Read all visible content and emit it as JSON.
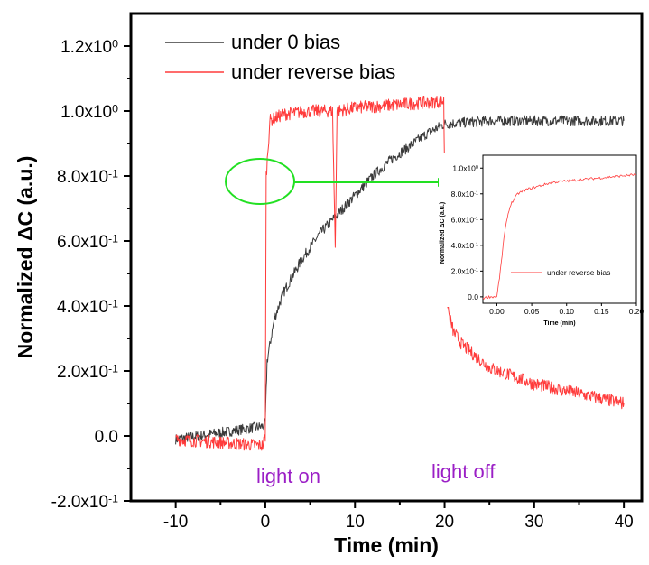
{
  "chart_data": {
    "main": {
      "type": "line",
      "xlabel": "Time (min)",
      "ylabel": "Normalized ΔC (a.u.)",
      "xlim": [
        -15,
        42
      ],
      "ylim": [
        -0.2,
        1.3
      ],
      "x_ticks": [
        -10,
        0,
        10,
        20,
        30,
        40
      ],
      "x_tick_labels": [
        "-10",
        "0",
        "10",
        "20",
        "30",
        "40"
      ],
      "y_ticks": [
        -0.2,
        0.0,
        0.2,
        0.4,
        0.6,
        0.8,
        1.0,
        1.2
      ],
      "y_tick_labels": [
        {
          "mantissa": "-2.0x10",
          "exp": "-1"
        },
        {
          "mantissa": "0.0",
          "exp": ""
        },
        {
          "mantissa": "2.0x10",
          "exp": "-1"
        },
        {
          "mantissa": "4.0x10",
          "exp": "-1"
        },
        {
          "mantissa": "6.0x10",
          "exp": "-1"
        },
        {
          "mantissa": "8.0x10",
          "exp": "-1"
        },
        {
          "mantissa": "1.0x10",
          "exp": "0"
        },
        {
          "mantissa": "1.2x10",
          "exp": "0"
        }
      ],
      "grid": false,
      "legend_position": "top-left",
      "series": [
        {
          "name": "under 0 bias",
          "color": "#3a3a3a",
          "x": [
            -10,
            -5,
            -0.2,
            0,
            0.2,
            1,
            2,
            4,
            6,
            8,
            10,
            12,
            14,
            16,
            18,
            20,
            25,
            30,
            35,
            40
          ],
          "y": [
            -0.01,
            0.01,
            0.03,
            0.04,
            0.23,
            0.36,
            0.44,
            0.54,
            0.62,
            0.68,
            0.74,
            0.8,
            0.85,
            0.89,
            0.93,
            0.96,
            0.97,
            0.97,
            0.97,
            0.97
          ]
        },
        {
          "name": "under reverse bias",
          "color": "#ff3b3b",
          "x": [
            -10,
            -5,
            -0.3,
            0,
            0.1,
            0.5,
            2,
            5,
            7.5,
            7.8,
            8.0,
            10,
            15,
            19.5,
            19.9,
            20.2,
            20.5,
            21,
            22,
            25,
            30,
            35,
            40
          ],
          "y": [
            -0.01,
            -0.02,
            -0.03,
            0.0,
            0.8,
            0.97,
            0.99,
            1.0,
            1.0,
            0.58,
            1.0,
            1.01,
            1.02,
            1.03,
            1.03,
            0.45,
            0.37,
            0.32,
            0.28,
            0.21,
            0.16,
            0.13,
            0.1
          ]
        }
      ],
      "annotations": [
        "light on",
        "light off"
      ],
      "annotation_x": [
        0,
        20
      ]
    },
    "inset": {
      "type": "line",
      "xlabel": "Time (min)",
      "ylabel": "Normalized ΔC (a.u.)",
      "xlim": [
        -0.02,
        0.2
      ],
      "ylim": [
        -0.05,
        1.1
      ],
      "x_ticks": [
        0.0,
        0.05,
        0.1,
        0.15,
        0.2
      ],
      "x_tick_labels": [
        "0.00",
        "0.05",
        "0.10",
        "0.15",
        "0.20"
      ],
      "y_ticks": [
        0.0,
        0.2,
        0.4,
        0.6,
        0.8,
        1.0
      ],
      "y_tick_labels": [
        {
          "mantissa": "0.0",
          "exp": ""
        },
        {
          "mantissa": "2.0x10",
          "exp": "-1"
        },
        {
          "mantissa": "4.0x10",
          "exp": "-1"
        },
        {
          "mantissa": "6.0x10",
          "exp": "-1"
        },
        {
          "mantissa": "8.0x10",
          "exp": "-1"
        },
        {
          "mantissa": "1.0x10",
          "exp": "0"
        }
      ],
      "legend_position": "bottom-right",
      "series": [
        {
          "name": "under reverse bias",
          "color": "#ff3b3b",
          "x": [
            -0.02,
            -0.01,
            0.0,
            0.005,
            0.01,
            0.015,
            0.02,
            0.03,
            0.04,
            0.06,
            0.08,
            0.1,
            0.12,
            0.14,
            0.16,
            0.18,
            0.2
          ],
          "y": [
            -0.01,
            0.0,
            0.0,
            0.2,
            0.45,
            0.62,
            0.72,
            0.8,
            0.83,
            0.86,
            0.89,
            0.9,
            0.91,
            0.92,
            0.93,
            0.94,
            0.95
          ]
        }
      ]
    },
    "highlight_color": "#22e022"
  }
}
